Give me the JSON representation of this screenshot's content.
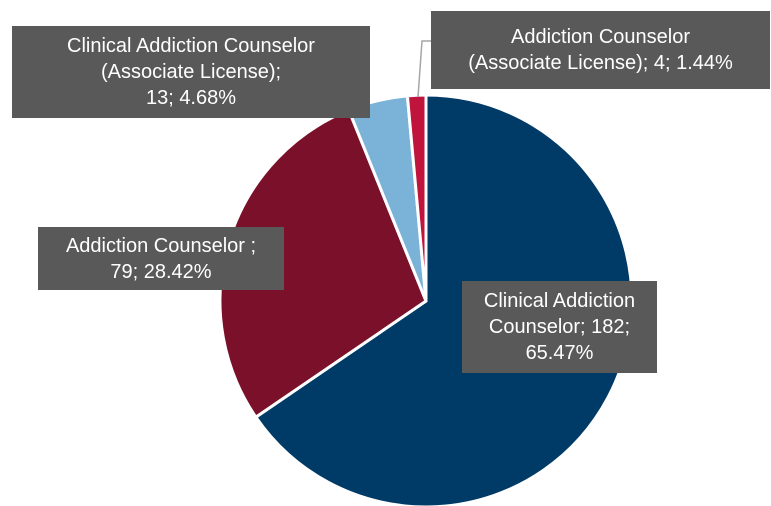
{
  "chart_data": {
    "type": "pie",
    "title": "",
    "slices": [
      {
        "category": "Clinical Addiction Counselor",
        "value": 182,
        "percent": "65.47%",
        "label_lines": [
          "Clinical Addiction",
          "Counselor; 182;",
          "65.47%"
        ],
        "color": "#003A66"
      },
      {
        "category": "Addiction Counselor ",
        "value": 79,
        "percent": "28.42%",
        "label_lines": [
          "Addiction Counselor ;",
          "79; 28.42%"
        ],
        "color": "#7A1029"
      },
      {
        "category": "Clinical Addiction Counselor (Associate License)",
        "value": 13,
        "percent": "4.68%",
        "label_lines": [
          "Clinical Addiction Counselor",
          "(Associate License);",
          "13; 4.68%"
        ],
        "color": "#7BB3D8"
      },
      {
        "category": "Addiction Counselor (Associate License)",
        "value": 4,
        "percent": "1.44%",
        "label_lines": [
          "Addiction Counselor",
          "(Associate License); 4; 1.44%"
        ],
        "color": "#C0143C"
      }
    ],
    "label_color": "#595959",
    "legend": "none"
  }
}
